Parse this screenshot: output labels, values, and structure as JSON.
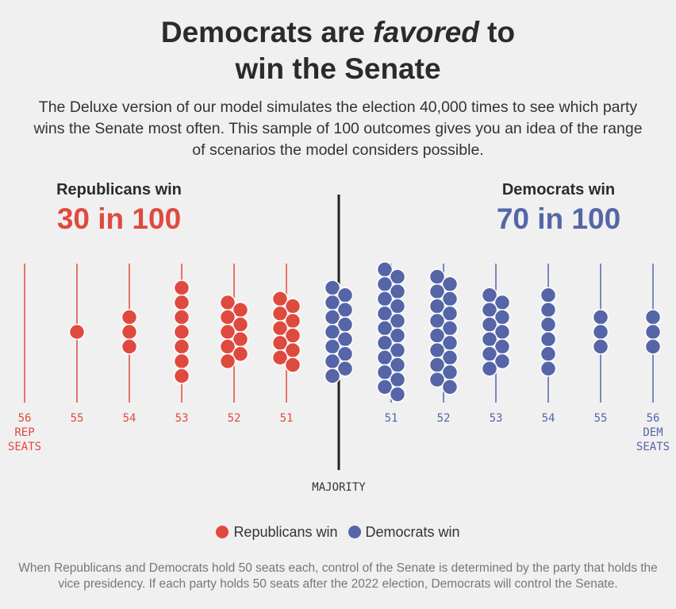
{
  "title": {
    "pre": "Democrats are ",
    "em": "favored",
    "post": " to",
    "line2": "win the Senate"
  },
  "subtitle": "The Deluxe version of our model simulates the election 40,000 times to see which party wins the Senate most often. This sample of 100 outcomes gives you an idea of the range of scenarios the model considers possible.",
  "rep_label": {
    "heading": "Republicans win",
    "value": "30 in 100"
  },
  "dem_label": {
    "heading": "Democrats win",
    "value": "70 in 100"
  },
  "colors": {
    "rep": "#df4a3f",
    "dem": "#5565a7",
    "majority": "#222222"
  },
  "chart_data": {
    "type": "scatter",
    "title": "Democrats are favored to win the Senate",
    "categories": [
      {
        "party": "rep",
        "label": "56",
        "extra": [
          "REP",
          "SEATS"
        ],
        "count": 0
      },
      {
        "party": "rep",
        "label": "55",
        "count": 1
      },
      {
        "party": "rep",
        "label": "54",
        "count": 3
      },
      {
        "party": "rep",
        "label": "53",
        "count": 7
      },
      {
        "party": "rep",
        "label": "52",
        "count": 9
      },
      {
        "party": "rep",
        "label": "51",
        "count": 10
      },
      {
        "party": "dem",
        "label": "",
        "count": 13,
        "majority": true
      },
      {
        "party": "dem",
        "label": "51",
        "count": 18
      },
      {
        "party": "dem",
        "label": "52",
        "count": 16
      },
      {
        "party": "dem",
        "label": "53",
        "count": 11
      },
      {
        "party": "dem",
        "label": "54",
        "count": 6
      },
      {
        "party": "dem",
        "label": "55",
        "count": 3
      },
      {
        "party": "dem",
        "label": "56",
        "extra": [
          "DEM",
          "SEATS"
        ],
        "count": 3
      }
    ],
    "majority_label": "MAJORITY",
    "total_outcomes": 100
  },
  "legend": {
    "rep": "Republicans win",
    "dem": "Democrats win"
  },
  "footnote": "When Republicans and Democrats hold 50 seats each, control of the Senate is determined by the party that holds the vice presidency. If each party holds 50 seats after the 2022 election, Democrats will control the Senate."
}
